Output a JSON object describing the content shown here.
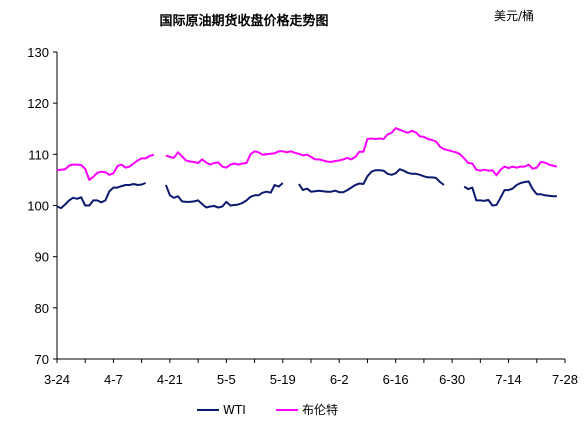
{
  "chart_data": {
    "type": "line",
    "title": "国际原油期货收盘价格走势图",
    "unit_label": "美元/桶",
    "ylim": [
      70,
      130
    ],
    "yticks": [
      70,
      80,
      90,
      100,
      110,
      120,
      130
    ],
    "xticks": [
      "3-24",
      "4-7",
      "4-21",
      "5-5",
      "5-19",
      "6-2",
      "6-16",
      "6-30",
      "7-14",
      "7-28"
    ],
    "x_days": 126,
    "grid": false,
    "legend_position": "bottom",
    "colors": {
      "WTI": "#0b1a6e",
      "布伦特": "#ff00ff"
    },
    "series": [
      {
        "name": "WTI",
        "segments": [
          [
            [
              0,
              99.8
            ],
            [
              1,
              99.5
            ],
            [
              2,
              100.2
            ],
            [
              3,
              101.0
            ],
            [
              4,
              101.5
            ],
            [
              5,
              101.3
            ],
            [
              6,
              101.6
            ],
            [
              7,
              100.0
            ],
            [
              8,
              100.0
            ],
            [
              9,
              101.0
            ],
            [
              10,
              101.0
            ],
            [
              11,
              100.6
            ],
            [
              12,
              101.0
            ],
            [
              13,
              102.8
            ],
            [
              14,
              103.5
            ],
            [
              15,
              103.5
            ],
            [
              16,
              103.8
            ],
            [
              17,
              104.0
            ],
            [
              18,
              104.0
            ],
            [
              19,
              104.2
            ],
            [
              20,
              104.0
            ],
            [
              21,
              104.1
            ],
            [
              22,
              104.4
            ]
          ],
          [
            [
              27,
              104.0
            ],
            [
              28,
              102.0
            ],
            [
              29,
              101.5
            ],
            [
              30,
              101.8
            ],
            [
              31,
              100.8
            ],
            [
              32,
              100.7
            ],
            [
              33,
              100.7
            ],
            [
              34,
              100.8
            ],
            [
              35,
              101.0
            ],
            [
              36,
              100.3
            ],
            [
              37,
              99.6
            ],
            [
              38,
              99.8
            ],
            [
              39,
              99.9
            ],
            [
              40,
              99.6
            ],
            [
              41,
              99.8
            ],
            [
              42,
              100.7
            ],
            [
              43,
              100.0
            ],
            [
              44,
              100.1
            ],
            [
              45,
              100.2
            ],
            [
              46,
              100.5
            ],
            [
              47,
              101.0
            ],
            [
              48,
              101.7
            ],
            [
              49,
              102.0
            ],
            [
              50,
              102.0
            ],
            [
              51,
              102.5
            ],
            [
              52,
              102.7
            ],
            [
              53,
              102.5
            ],
            [
              54,
              104.0
            ],
            [
              55,
              103.7
            ],
            [
              56,
              104.4
            ]
          ],
          [
            [
              60,
              104.2
            ],
            [
              61,
              103.0
            ],
            [
              62,
              103.3
            ],
            [
              63,
              102.7
            ],
            [
              64,
              102.8
            ],
            [
              65,
              102.9
            ],
            [
              66,
              102.8
            ],
            [
              67,
              102.7
            ],
            [
              68,
              102.7
            ],
            [
              69,
              102.9
            ],
            [
              70,
              102.6
            ],
            [
              71,
              102.6
            ],
            [
              72,
              103.0
            ],
            [
              73,
              103.5
            ],
            [
              74,
              104.0
            ],
            [
              75,
              104.3
            ],
            [
              76,
              104.2
            ],
            [
              77,
              105.7
            ],
            [
              78,
              106.6
            ],
            [
              79,
              106.9
            ],
            [
              80,
              106.9
            ],
            [
              81,
              106.8
            ],
            [
              82,
              106.2
            ],
            [
              83,
              106.0
            ],
            [
              84,
              106.3
            ],
            [
              85,
              107.1
            ],
            [
              86,
              106.8
            ],
            [
              87,
              106.4
            ],
            [
              88,
              106.2
            ],
            [
              89,
              106.2
            ],
            [
              90,
              106.0
            ],
            [
              91,
              105.7
            ],
            [
              92,
              105.5
            ],
            [
              93,
              105.5
            ],
            [
              94,
              105.4
            ],
            [
              95,
              104.6
            ],
            [
              96,
              104.0
            ]
          ],
          [
            [
              101,
              103.7
            ],
            [
              102,
              103.2
            ],
            [
              103,
              103.5
            ],
            [
              104,
              101.0
            ],
            [
              105,
              101.0
            ],
            [
              106,
              100.9
            ],
            [
              107,
              101.1
            ],
            [
              108,
              100.0
            ],
            [
              109,
              100.1
            ],
            [
              110,
              101.5
            ],
            [
              111,
              103.0
            ],
            [
              112,
              103.0
            ],
            [
              113,
              103.3
            ],
            [
              114,
              104.0
            ],
            [
              115,
              104.4
            ],
            [
              116,
              104.6
            ],
            [
              117,
              104.7
            ],
            [
              118,
              103.2
            ],
            [
              119,
              102.2
            ],
            [
              120,
              102.2
            ],
            [
              121,
              102.0
            ],
            [
              122,
              101.9
            ],
            [
              123,
              101.8
            ],
            [
              124,
              101.8
            ]
          ]
        ]
      },
      {
        "name": "布伦特",
        "segments": [
          [
            [
              0,
              106.9
            ],
            [
              1,
              107.0
            ],
            [
              2,
              107.1
            ],
            [
              3,
              107.8
            ],
            [
              4,
              108.0
            ],
            [
              5,
              108.0
            ],
            [
              6,
              107.9
            ],
            [
              7,
              107.2
            ],
            [
              8,
              105.0
            ],
            [
              9,
              105.6
            ],
            [
              10,
              106.4
            ],
            [
              11,
              106.6
            ],
            [
              12,
              106.5
            ],
            [
              13,
              106.0
            ],
            [
              14,
              106.3
            ],
            [
              15,
              107.7
            ],
            [
              16,
              108.0
            ],
            [
              17,
              107.4
            ],
            [
              18,
              107.6
            ],
            [
              19,
              108.2
            ],
            [
              20,
              108.8
            ],
            [
              21,
              109.2
            ],
            [
              22,
              109.2
            ],
            [
              23,
              109.7
            ],
            [
              24,
              109.9
            ]
          ],
          [
            [
              27,
              109.8
            ],
            [
              28,
              109.5
            ],
            [
              29,
              109.3
            ],
            [
              30,
              110.4
            ],
            [
              31,
              109.6
            ],
            [
              32,
              108.8
            ],
            [
              33,
              108.6
            ],
            [
              34,
              108.5
            ],
            [
              35,
              108.3
            ],
            [
              36,
              109.0
            ],
            [
              37,
              108.4
            ],
            [
              38,
              108.0
            ],
            [
              39,
              108.3
            ],
            [
              40,
              108.4
            ],
            [
              41,
              107.6
            ],
            [
              42,
              107.4
            ],
            [
              43,
              108.0
            ],
            [
              44,
              108.2
            ],
            [
              45,
              108.0
            ],
            [
              46,
              108.2
            ],
            [
              47,
              108.3
            ],
            [
              48,
              110.0
            ],
            [
              49,
              110.6
            ],
            [
              50,
              110.4
            ],
            [
              51,
              109.9
            ],
            [
              52,
              110.0
            ],
            [
              53,
              110.1
            ],
            [
              54,
              110.2
            ],
            [
              55,
              110.6
            ],
            [
              56,
              110.6
            ],
            [
              57,
              110.4
            ],
            [
              58,
              110.6
            ],
            [
              59,
              110.3
            ],
            [
              60,
              110.1
            ],
            [
              61,
              109.8
            ],
            [
              62,
              109.9
            ],
            [
              63,
              109.5
            ],
            [
              64,
              109.0
            ],
            [
              65,
              109.0
            ],
            [
              66,
              108.8
            ],
            [
              67,
              108.6
            ],
            [
              68,
              108.5
            ],
            [
              69,
              108.7
            ],
            [
              70,
              108.8
            ],
            [
              71,
              109.0
            ],
            [
              72,
              109.3
            ],
            [
              73,
              109.0
            ],
            [
              74,
              109.5
            ],
            [
              75,
              110.5
            ],
            [
              76,
              110.5
            ],
            [
              77,
              113.0
            ],
            [
              78,
              113.1
            ],
            [
              79,
              113.0
            ],
            [
              80,
              113.1
            ],
            [
              81,
              113.0
            ],
            [
              82,
              113.9
            ],
            [
              83,
              114.2
            ],
            [
              84,
              115.1
            ],
            [
              85,
              114.8
            ],
            [
              86,
              114.5
            ],
            [
              87,
              114.2
            ],
            [
              88,
              114.6
            ],
            [
              89,
              114.3
            ],
            [
              90,
              113.5
            ],
            [
              91,
              113.4
            ],
            [
              92,
              113.0
            ],
            [
              93,
              112.8
            ],
            [
              94,
              112.5
            ],
            [
              95,
              111.5
            ],
            [
              96,
              111.0
            ],
            [
              97,
              110.8
            ],
            [
              98,
              110.6
            ],
            [
              99,
              110.4
            ],
            [
              100,
              110.0
            ],
            [
              101,
              109.2
            ],
            [
              102,
              108.3
            ],
            [
              103,
              108.2
            ],
            [
              104,
              107.0
            ],
            [
              105,
              106.8
            ],
            [
              106,
              107.0
            ],
            [
              107,
              106.8
            ],
            [
              108,
              106.9
            ],
            [
              109,
              105.9
            ],
            [
              110,
              107.0
            ],
            [
              111,
              107.6
            ],
            [
              112,
              107.3
            ],
            [
              113,
              107.6
            ],
            [
              114,
              107.4
            ],
            [
              115,
              107.6
            ],
            [
              116,
              107.6
            ],
            [
              117,
              108.0
            ],
            [
              118,
              107.2
            ],
            [
              119,
              107.4
            ],
            [
              120,
              108.5
            ],
            [
              121,
              108.4
            ],
            [
              122,
              108.0
            ],
            [
              123,
              107.8
            ],
            [
              124,
              107.6
            ]
          ]
        ]
      }
    ]
  }
}
